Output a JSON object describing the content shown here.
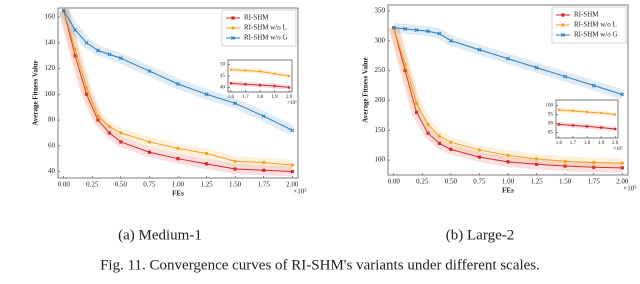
{
  "figure_caption": "Fig. 11.  Convergence curves of RI-SHM's variants under different scales.",
  "chart_data": [
    {
      "type": "line",
      "caption": "(a) Medium-1",
      "xlabel": "FEs",
      "ylabel": "Average Fitness Value",
      "x_multiplier": "×10⁵",
      "x": [
        0,
        0.1,
        0.2,
        0.3,
        0.4,
        0.5,
        0.75,
        1.0,
        1.25,
        1.5,
        1.75,
        2.0
      ],
      "xlim": [
        -0.05,
        2.05
      ],
      "xticks": [
        {
          "value": 0,
          "label": "0.00"
        },
        {
          "value": 0.25,
          "label": "0.25"
        },
        {
          "value": 0.5,
          "label": "0.50"
        },
        {
          "value": 0.75,
          "label": "0.75"
        },
        {
          "value": 1,
          "label": "1.00"
        },
        {
          "value": 1.25,
          "label": "1.25"
        },
        {
          "value": 1.5,
          "label": "1.50"
        },
        {
          "value": 1.75,
          "label": "1.75"
        },
        {
          "value": 2,
          "label": "2.00"
        }
      ],
      "ylim": [
        35,
        167
      ],
      "yticks": [
        40,
        60,
        80,
        100,
        120,
        140,
        160
      ],
      "legend": "upper right",
      "series": [
        {
          "name": "RI-SHM",
          "color": "#d62728",
          "marker": "square",
          "values": [
            165,
            130,
            100,
            80,
            70,
            63,
            55,
            50,
            46,
            42,
            41,
            40
          ]
        },
        {
          "name": "RI-SHM w/o L",
          "color": "#f0a020",
          "marker": "circle",
          "values": [
            165,
            135,
            105,
            83,
            75,
            70,
            63,
            58,
            54,
            48,
            47,
            45
          ]
        },
        {
          "name": "RI-SHM w/o G",
          "color": "#2a7bbf",
          "marker": "x",
          "values": [
            165,
            150,
            140,
            134,
            131,
            128,
            118,
            108,
            100,
            93,
            83,
            72
          ]
        }
      ]
    },
    {
      "type": "line",
      "inset": true,
      "x_multiplier": "×10⁵",
      "x": [
        1.6,
        1.7,
        1.8,
        1.9,
        2.0
      ],
      "xlim": [
        1.58,
        2.02
      ],
      "xticks": [
        1.6,
        1.7,
        1.8,
        1.9,
        {
          "value": 2,
          "label": "2.0"
        }
      ],
      "ylim": [
        38,
        52
      ],
      "yticks": [
        40,
        45,
        50
      ],
      "series": [
        {
          "color": "#d62728",
          "marker": "square",
          "values": [
            41.8,
            41.4,
            41,
            40.6,
            40
          ]
        },
        {
          "color": "#f0a020",
          "marker": "circle",
          "values": [
            47.8,
            47.4,
            47,
            46,
            45
          ]
        }
      ]
    },
    {
      "type": "line",
      "caption": "(b) Large-2",
      "xlabel": "FEs",
      "ylabel": "Average Fitness Value",
      "x_multiplier": "×10⁵",
      "x": [
        0,
        0.1,
        0.2,
        0.3,
        0.4,
        0.5,
        0.75,
        1.0,
        1.25,
        1.5,
        1.75,
        2.0
      ],
      "xlim": [
        -0.05,
        2.05
      ],
      "xticks": [
        {
          "value": 0,
          "label": "0.00"
        },
        {
          "value": 0.25,
          "label": "0.25"
        },
        {
          "value": 0.5,
          "label": "0.50"
        },
        {
          "value": 0.75,
          "label": "0.75"
        },
        {
          "value": 1,
          "label": "1.00"
        },
        {
          "value": 1.25,
          "label": "1.25"
        },
        {
          "value": 1.5,
          "label": "1.50"
        },
        {
          "value": 1.75,
          "label": "1.75"
        },
        {
          "value": 2,
          "label": "2.00"
        }
      ],
      "ylim": [
        75,
        360
      ],
      "yticks": [
        100,
        150,
        200,
        250,
        300,
        350
      ],
      "legend": "upper right",
      "series": [
        {
          "name": "RI-SHM",
          "color": "#d62728",
          "marker": "square",
          "values": [
            322,
            250,
            180,
            145,
            128,
            118,
            105,
            97,
            93,
            90,
            88,
            87
          ]
        },
        {
          "name": "RI-SHM w/o L",
          "color": "#f0a020",
          "marker": "circle",
          "values": [
            322,
            260,
            195,
            160,
            140,
            130,
            117,
            108,
            102,
            98,
            96,
            95
          ]
        },
        {
          "name": "RI-SHM w/o G",
          "color": "#2a7bbf",
          "marker": "x",
          "values": [
            322,
            320,
            318,
            316,
            312,
            300,
            285,
            270,
            255,
            240,
            225,
            210
          ]
        }
      ]
    },
    {
      "type": "line",
      "inset": true,
      "x_multiplier": "×10⁵",
      "x": [
        1.6,
        1.7,
        1.8,
        1.9,
        2.0
      ],
      "xlim": [
        1.58,
        2.02
      ],
      "xticks": [
        1.6,
        1.7,
        1.8,
        1.9,
        {
          "value": 2,
          "label": "2.0"
        }
      ],
      "ylim": [
        82,
        103
      ],
      "yticks": [
        85,
        90,
        95,
        100
      ],
      "series": [
        {
          "color": "#d62728",
          "marker": "square",
          "values": [
            89.5,
            89,
            88.4,
            87.8,
            87
          ]
        },
        {
          "color": "#f0a020",
          "marker": "circle",
          "values": [
            97.5,
            97,
            96.4,
            95.8,
            95
          ]
        }
      ]
    }
  ]
}
